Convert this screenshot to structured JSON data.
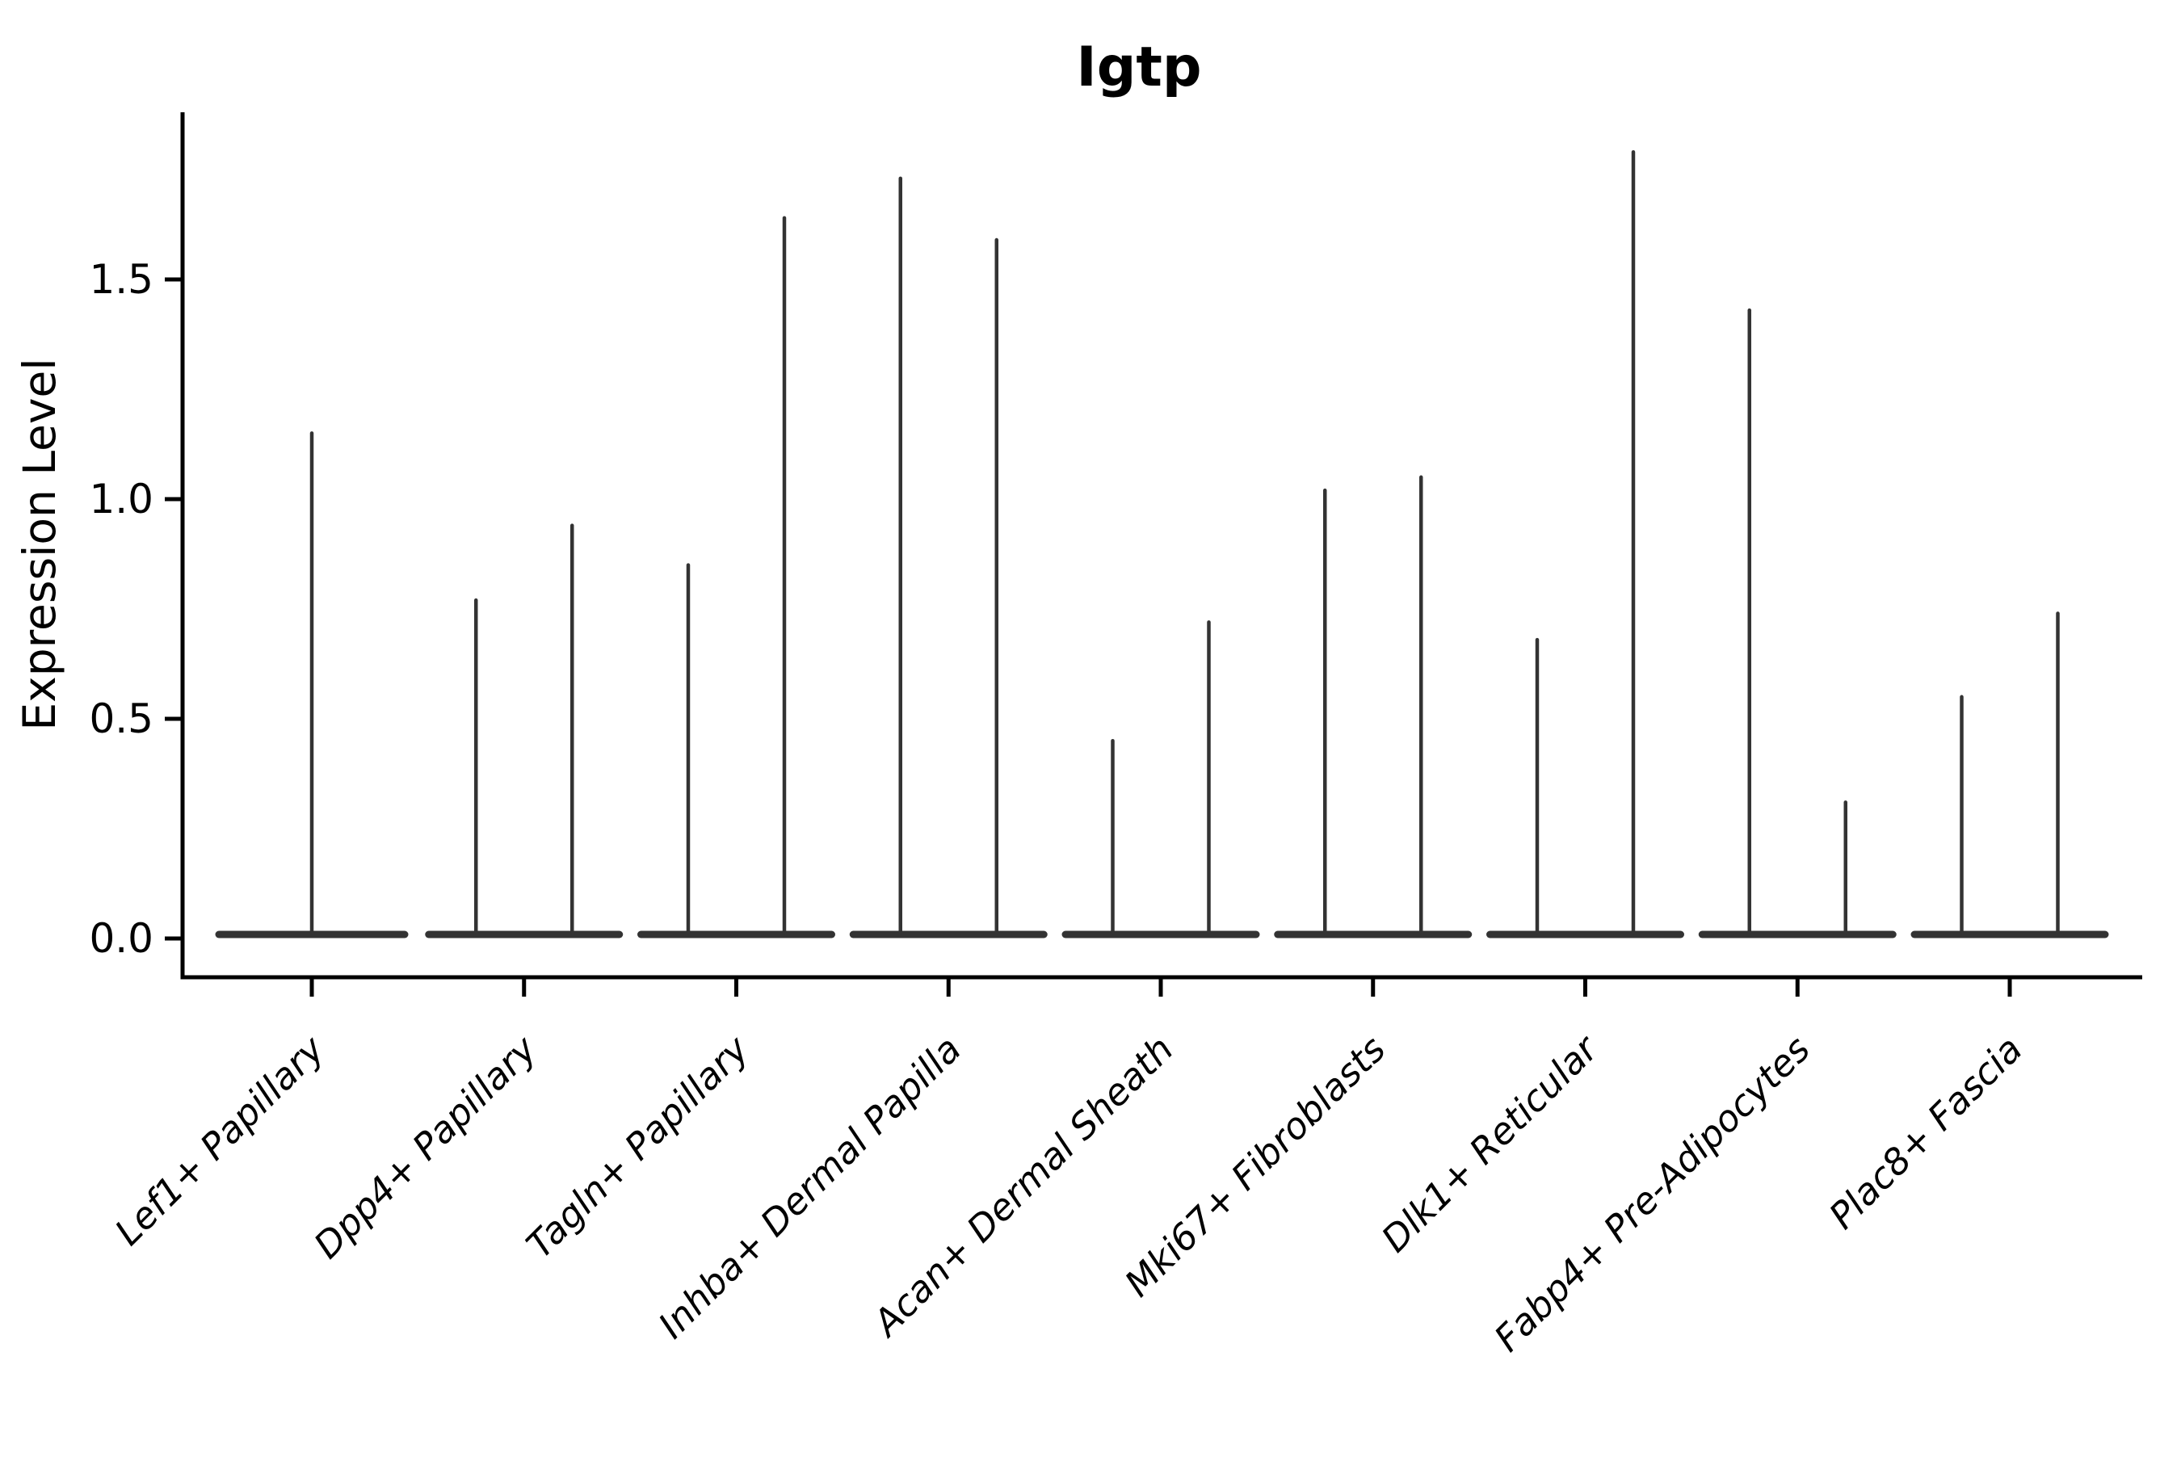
{
  "title": "Igtp",
  "chart_data": {
    "type": "violin",
    "title": "Igtp",
    "ylabel": "Expression Level",
    "xlabel": "",
    "ylim": [
      -0.09,
      1.88
    ],
    "yticks": [
      0.0,
      0.5,
      1.0,
      1.5
    ],
    "ytick_labels": [
      "0.0",
      "0.5",
      "1.0",
      "1.5"
    ],
    "grid": false,
    "legend": "none",
    "categories": [
      "Lef1+ Papillary",
      "Dpp4+ Papillary",
      "Tagln+ Papillary",
      "Inhba+ Dermal Papilla",
      "Acan+ Dermal Sheath",
      "Mki67+ Fibroblasts",
      "Dlk1+ Reticular",
      "Fabp4+ Pre-Adipocytes",
      "Plac8+ Fascia"
    ],
    "violin_max_expression_per_category": [
      [
        1.15
      ],
      [
        0.77,
        0.94
      ],
      [
        0.85,
        1.64
      ],
      [
        1.73,
        1.59
      ],
      [
        0.45,
        0.72
      ],
      [
        1.02,
        1.05
      ],
      [
        0.68,
        1.79
      ],
      [
        1.43,
        0.31
      ],
      [
        0.55,
        0.74
      ]
    ],
    "shape_note": "each violin is a flat dense mass at 0 with a thin vertical spike up to its max value"
  },
  "style": {
    "violin_color": "#333333",
    "axis_color": "#000000",
    "text_color": "#000000",
    "background": "#ffffff"
  }
}
